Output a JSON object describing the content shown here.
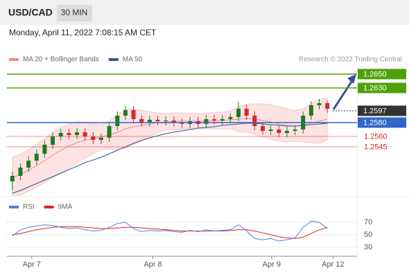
{
  "header": {
    "symbol": "USD/CAD",
    "timeframe": "30 MIN",
    "timestamp": "Monday, April 11, 2022 7:08:15 AM CET"
  },
  "chart_data": {
    "type": "candlestick",
    "legend": [
      {
        "name": "MA 20 + Bollinger Bands",
        "color": "#f28b8b"
      },
      {
        "name": "MA 50",
        "color": "#2f5597"
      }
    ],
    "credit": "Research © 2022 Trading Central",
    "xlim": [
      -0.5,
      39.5
    ],
    "xticks": [
      {
        "value": 2.4,
        "label": "Apr 7"
      },
      {
        "value": 17.4,
        "label": "Apr 8"
      },
      {
        "value": 32.1,
        "label": "Apr 9"
      },
      {
        "value": 39.7,
        "label": "Apr 12"
      }
    ],
    "ylim": [
      1.2465,
      1.2665
    ],
    "up_color": "#1e7b1e",
    "down_color": "#d42a2a",
    "open": [
      1.2495,
      1.2503,
      1.2515,
      1.2525,
      1.2535,
      1.2548,
      1.256,
      1.2565,
      1.2562,
      1.2566,
      1.256,
      1.2555,
      1.2558,
      1.2575,
      1.259,
      1.2598,
      1.2585,
      1.258,
      1.2584,
      1.2582,
      1.2583,
      1.258,
      1.2578,
      1.2582,
      1.2578,
      1.2585,
      1.2583,
      1.2585,
      1.2588,
      1.26,
      1.259,
      1.2575,
      1.2568,
      1.257,
      1.2565,
      1.2568,
      1.257,
      1.259,
      1.2605,
      1.2608
    ],
    "high": [
      1.2509,
      1.2521,
      1.2531,
      1.2541,
      1.2554,
      1.2566,
      1.2571,
      1.2571,
      1.2572,
      1.2572,
      1.2566,
      1.2564,
      1.2581,
      1.2596,
      1.2604,
      1.2604,
      1.2591,
      1.259,
      1.259,
      1.2589,
      1.2589,
      1.2586,
      1.2588,
      1.2588,
      1.2591,
      1.2591,
      1.2591,
      1.2594,
      1.261,
      1.2606,
      1.2596,
      1.2581,
      1.2576,
      1.2576,
      1.2574,
      1.2576,
      1.2596,
      1.2611,
      1.2614,
      1.2612
    ],
    "low": [
      1.2482,
      1.2497,
      1.2509,
      1.2519,
      1.2529,
      1.2542,
      1.2554,
      1.2556,
      1.2556,
      1.2554,
      1.2549,
      1.2549,
      1.2552,
      1.2569,
      1.2584,
      1.2579,
      1.2574,
      1.2574,
      1.2576,
      1.2576,
      1.2574,
      1.2572,
      1.2572,
      1.2572,
      1.2572,
      1.2577,
      1.2577,
      1.2579,
      1.2582,
      1.2584,
      1.2569,
      1.2562,
      1.2562,
      1.2559,
      1.2559,
      1.2562,
      1.2564,
      1.2584,
      1.2599,
      1.2594
    ],
    "close": [
      1.2503,
      1.2515,
      1.2525,
      1.2535,
      1.2548,
      1.256,
      1.2565,
      1.2562,
      1.2566,
      1.256,
      1.2555,
      1.2558,
      1.2575,
      1.259,
      1.2598,
      1.2585,
      1.258,
      1.2584,
      1.2582,
      1.2583,
      1.258,
      1.2578,
      1.2582,
      1.2578,
      1.2585,
      1.2583,
      1.2585,
      1.2588,
      1.26,
      1.259,
      1.2575,
      1.2568,
      1.257,
      1.2565,
      1.2568,
      1.257,
      1.259,
      1.2605,
      1.2608,
      1.26
    ],
    "ma20": [
      1.25,
      1.2505,
      1.2511,
      1.2518,
      1.2525,
      1.2533,
      1.254,
      1.2546,
      1.2551,
      1.2555,
      1.2557,
      1.2559,
      1.2562,
      1.2566,
      1.2571,
      1.2574,
      1.2576,
      1.2578,
      1.258,
      1.2581,
      1.2582,
      1.2582,
      1.2582,
      1.2582,
      1.2582,
      1.2583,
      1.2583,
      1.2584,
      1.2585,
      1.2586,
      1.2585,
      1.2583,
      1.2581,
      1.2578,
      1.2576,
      1.2575,
      1.2576,
      1.2579,
      1.2582,
      1.2585
    ],
    "band_upper": [
      1.253,
      1.2535,
      1.2541,
      1.2549,
      1.2557,
      1.2566,
      1.2573,
      1.2578,
      1.2581,
      1.2581,
      1.2579,
      1.2577,
      1.2582,
      1.2591,
      1.2599,
      1.26,
      1.2598,
      1.2596,
      1.2594,
      1.2593,
      1.2594,
      1.2594,
      1.2593,
      1.2593,
      1.2593,
      1.2595,
      1.2595,
      1.2597,
      1.2603,
      1.2606,
      1.2607,
      1.2607,
      1.2606,
      1.2603,
      1.26,
      1.2597,
      1.26,
      1.2607,
      1.2614,
      1.2615
    ],
    "band_lower": [
      1.247,
      1.2475,
      1.2481,
      1.2487,
      1.2493,
      1.25,
      1.2507,
      1.2514,
      1.2521,
      1.2529,
      1.2535,
      1.2541,
      1.2542,
      1.2541,
      1.2543,
      1.2548,
      1.2554,
      1.256,
      1.2566,
      1.2569,
      1.257,
      1.257,
      1.2571,
      1.2571,
      1.2571,
      1.2571,
      1.2571,
      1.2571,
      1.2567,
      1.2566,
      1.2563,
      1.2559,
      1.2556,
      1.2553,
      1.2552,
      1.2553,
      1.2552,
      1.2551,
      1.255,
      1.2555
    ],
    "ma50": [
      1.2478,
      1.2482,
      1.2487,
      1.2492,
      1.2497,
      1.2502,
      1.2507,
      1.2512,
      1.2517,
      1.2522,
      1.2526,
      1.253,
      1.2535,
      1.254,
      1.2545,
      1.255,
      1.2554,
      1.2558,
      1.2561,
      1.2564,
      1.2566,
      1.2568,
      1.257,
      1.2572,
      1.2573,
      1.2574,
      1.2576,
      1.2577,
      1.2578,
      1.2579,
      1.2579,
      1.2578,
      1.2577,
      1.2576,
      1.2575,
      1.2575,
      1.2576,
      1.2577,
      1.2578,
      1.2579
    ],
    "levels": [
      {
        "value": 1.265,
        "label": "1.2650",
        "color": "#4fa10a",
        "kind": "filled",
        "line": "full"
      },
      {
        "value": 1.263,
        "label": "1.2630",
        "color": "#4fa10a",
        "kind": "filled",
        "line": "full"
      },
      {
        "value": 1.2597,
        "color": "#333333",
        "kind": "filled",
        "line": "dotted"
      },
      {
        "value": 1.258,
        "label": "1.2580",
        "color": "#2f66c8",
        "kind": "filled",
        "line": "full"
      },
      {
        "value": 1.256,
        "label": "1.2560",
        "color": "#e0211d",
        "kind": "text",
        "line": "full"
      },
      {
        "value": 1.2545,
        "color": "#e0211d",
        "kind": "text",
        "line": "full"
      }
    ],
    "rsi": {
      "legend": [
        {
          "name": "RSI",
          "color": "#4f7fd6"
        },
        {
          "name": "9MA",
          "color": "#e0211d"
        }
      ],
      "ylim": [
        20,
        80
      ],
      "yticks": [
        30,
        50,
        70
      ],
      "values": [
        48,
        58,
        62,
        64,
        66,
        65,
        62,
        60,
        61,
        58,
        56,
        57,
        62,
        68,
        70,
        60,
        55,
        57,
        56,
        57,
        55,
        54,
        57,
        55,
        58,
        56,
        57,
        58,
        66,
        56,
        44,
        42,
        44,
        40,
        42,
        45,
        62,
        72,
        70,
        60
      ],
      "ma": [
        50,
        52,
        55,
        58,
        60,
        62,
        63,
        63,
        63,
        62,
        61,
        60,
        60,
        61,
        62,
        62,
        61,
        60,
        59,
        58,
        57,
        56,
        56,
        56,
        56,
        56,
        56,
        57,
        58,
        58,
        56,
        53,
        50,
        47,
        45,
        44,
        46,
        52,
        58,
        62
      ]
    }
  }
}
